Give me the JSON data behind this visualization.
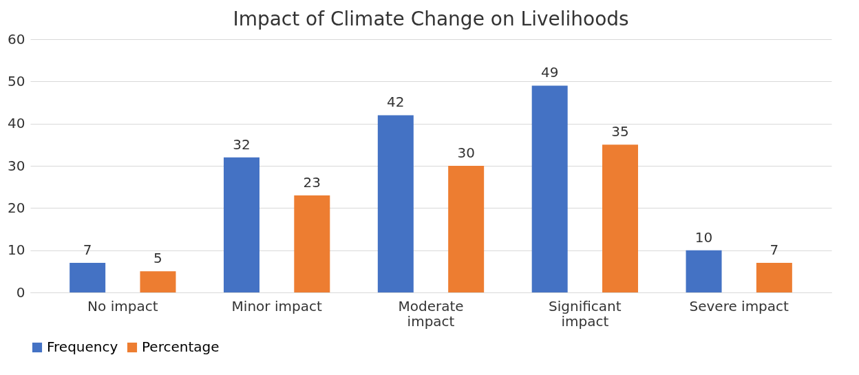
{
  "chart_data": {
    "type": "bar",
    "title": "Impact of Climate Change on Livelihoods",
    "categories": [
      "No impact",
      "Minor impact",
      "Moderate impact",
      "Significant impact",
      "Severe impact"
    ],
    "series": [
      {
        "name": "Frequency",
        "color": "#4472c4",
        "values": [
          7,
          32,
          42,
          49,
          10
        ]
      },
      {
        "name": "Percentage",
        "color": "#ed7d31",
        "values": [
          5,
          23,
          30,
          35,
          7
        ]
      }
    ],
    "ylim": [
      0,
      60
    ],
    "yticks": [
      0,
      10,
      20,
      30,
      40,
      50,
      60
    ],
    "grid": "y",
    "legend": "bottom",
    "data_labels": true
  }
}
